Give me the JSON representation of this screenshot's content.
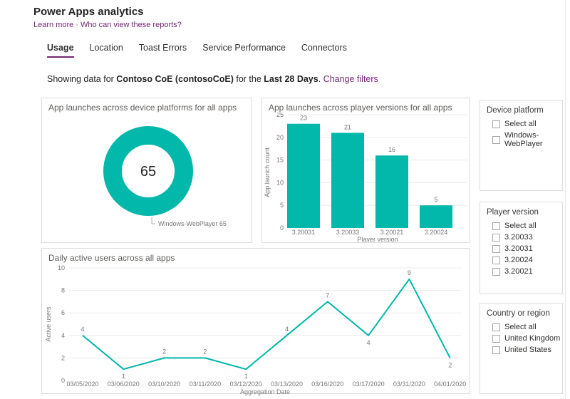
{
  "header": {
    "title": "Power Apps analytics",
    "links": {
      "learn_more": "Learn more",
      "separator": "·",
      "who_can_view": "Who can view these reports?"
    },
    "tabs": [
      {
        "label": "Usage",
        "active": true
      },
      {
        "label": "Location",
        "active": false
      },
      {
        "label": "Toast Errors",
        "active": false
      },
      {
        "label": "Service Performance",
        "active": false
      },
      {
        "label": "Connectors",
        "active": false
      }
    ],
    "filter_summary": {
      "prefix": "Showing data for ",
      "environment": "Contoso CoE (contosoCoE)",
      "middle": " for the ",
      "period": "Last 28 Days",
      "suffix": ". ",
      "change_filters": "Change filters"
    }
  },
  "colors": {
    "accent_purple": "#742774",
    "chart_teal": "#01B8AA",
    "grid": "#ececec",
    "axis_text": "#767676",
    "callout": "#b0b0b0",
    "donut_center_text": "#252423"
  },
  "chart_data": [
    {
      "id": "device-platforms-donut",
      "type": "pie",
      "title": "App launches across device platforms for all apps",
      "center_total": "65",
      "slices": [
        {
          "label": "Windows-WebPlayer",
          "value": 65
        }
      ]
    },
    {
      "id": "player-versions-bar",
      "type": "bar",
      "title": "App launches across player versions for all apps",
      "categories": [
        "3.20031",
        "3.20033",
        "3.20021",
        "3.20024"
      ],
      "values": [
        23,
        21,
        16,
        5
      ],
      "xlabel": "Player version",
      "ylabel": "App launch count",
      "yticks": [
        0,
        5,
        10,
        15,
        20,
        25
      ],
      "ylim": [
        0,
        25
      ],
      "grid": true,
      "data_labels": true
    },
    {
      "id": "daily-active-users-line",
      "type": "line",
      "title": "Daily active users across all apps",
      "x": [
        "03/05/2020",
        "03/06/2020",
        "03/10/2020",
        "03/11/2020",
        "03/12/2020",
        "03/13/2020",
        "03/16/2020",
        "03/17/2020",
        "03/31/2020",
        "04/01/2020"
      ],
      "values": [
        4,
        1,
        2,
        2,
        1,
        4,
        7,
        4,
        9,
        2
      ],
      "label_positions": [
        "above",
        "below",
        "above",
        "above",
        "below",
        "above",
        "above",
        "below",
        "above",
        "below"
      ],
      "xlabel": "Aggregation Date",
      "ylabel": "Active users",
      "yticks": [
        0,
        2,
        4,
        6,
        8,
        10
      ],
      "ylim": [
        0,
        10
      ],
      "grid": true,
      "data_labels": true
    }
  ],
  "filters": [
    {
      "title": "Device platform",
      "options": [
        {
          "label": "Select all",
          "checked": false
        },
        {
          "label": "Windows-WebPlayer",
          "checked": false
        }
      ]
    },
    {
      "title": "Player version",
      "options": [
        {
          "label": "Select all",
          "checked": false
        },
        {
          "label": "3.20033",
          "checked": false
        },
        {
          "label": "3.20031",
          "checked": false
        },
        {
          "label": "3.20024",
          "checked": false
        },
        {
          "label": "3.20021",
          "checked": false
        }
      ]
    },
    {
      "title": "Country or region",
      "options": [
        {
          "label": "Select all",
          "checked": false
        },
        {
          "label": "United Kingdom",
          "checked": false
        },
        {
          "label": "United States",
          "checked": false
        }
      ]
    }
  ]
}
